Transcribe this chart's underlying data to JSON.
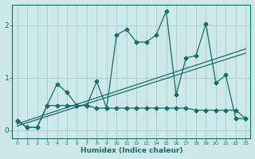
{
  "xlabel": "Humidex (Indice chaleur)",
  "bg_color": "#cce8e8",
  "line_color": "#1a6b6b",
  "grid_color": "#aecfcf",
  "xlim": [
    -0.5,
    23.5
  ],
  "ylim": [
    -0.15,
    2.4
  ],
  "xticks": [
    0,
    1,
    2,
    3,
    4,
    5,
    6,
    7,
    8,
    9,
    10,
    11,
    12,
    13,
    14,
    15,
    16,
    17,
    18,
    19,
    20,
    21,
    22,
    23
  ],
  "yticks": [
    0,
    1,
    2
  ],
  "series1_x": [
    0,
    1,
    2,
    3,
    4,
    5,
    6,
    7,
    8,
    9,
    10,
    11,
    12,
    13,
    14,
    15,
    16,
    17,
    18,
    19,
    20,
    21,
    22,
    23
  ],
  "series1_y": [
    0.18,
    0.05,
    0.05,
    0.47,
    0.88,
    0.72,
    0.47,
    0.47,
    0.93,
    0.42,
    1.82,
    1.92,
    1.68,
    1.68,
    1.82,
    2.27,
    0.67,
    1.38,
    1.42,
    2.03,
    0.9,
    1.05,
    0.22,
    0.22
  ],
  "series2_x": [
    0,
    1,
    2,
    3,
    4,
    5,
    6,
    7,
    8,
    9,
    10,
    11,
    12,
    13,
    14,
    15,
    16,
    17,
    18,
    19,
    20,
    21,
    22,
    23
  ],
  "series2_y": [
    0.18,
    0.05,
    0.05,
    0.47,
    0.47,
    0.47,
    0.47,
    0.47,
    0.42,
    0.42,
    0.42,
    0.42,
    0.42,
    0.42,
    0.42,
    0.42,
    0.42,
    0.42,
    0.38,
    0.38,
    0.38,
    0.38,
    0.38,
    0.22
  ],
  "trend1_x": [
    0,
    23
  ],
  "trend1_y": [
    0.12,
    1.55
  ],
  "trend2_x": [
    0,
    23
  ],
  "trend2_y": [
    0.08,
    1.47
  ],
  "markersize": 2.5,
  "linewidth": 0.9
}
